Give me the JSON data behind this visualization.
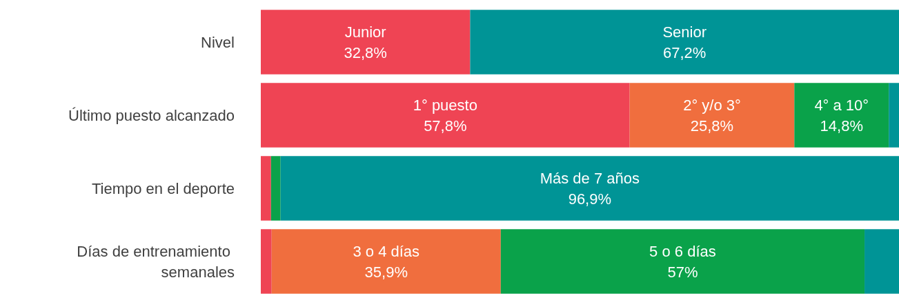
{
  "chart_data": {
    "type": "bar",
    "orientation": "horizontal",
    "stacked": true,
    "tick_labels": "y",
    "categories": [
      "Nivel",
      "Último puesto alcanzado",
      "Tiempo en el deporte",
      "Días de entrenamiento semanales"
    ],
    "series": [
      {
        "color": "#ef4454",
        "values": [
          32.8,
          57.8,
          1.6,
          1.7
        ],
        "value_labels": [
          "Junior\n32,8%",
          "1° puesto\n57,8%",
          null,
          null
        ]
      },
      {
        "color": "#f06e3e",
        "values": [
          null,
          25.8,
          null,
          35.9
        ],
        "value_labels": [
          null,
          "2° y/o 3°\n25,8%",
          null,
          "3 o 4 días\n35,9%"
        ]
      },
      {
        "color": "#0aa24a",
        "values": [
          null,
          14.8,
          1.5,
          57
        ],
        "value_labels": [
          null,
          "4° a 10°\n14,8%",
          null,
          "5 o 6 días\n57%"
        ]
      },
      {
        "color": "#009496",
        "values": [
          67.2,
          1.6,
          96.9,
          5.4
        ],
        "value_labels": [
          "Senior\n67,2%",
          null,
          "Más de 7 años\n96,9%",
          null
        ]
      }
    ]
  }
}
